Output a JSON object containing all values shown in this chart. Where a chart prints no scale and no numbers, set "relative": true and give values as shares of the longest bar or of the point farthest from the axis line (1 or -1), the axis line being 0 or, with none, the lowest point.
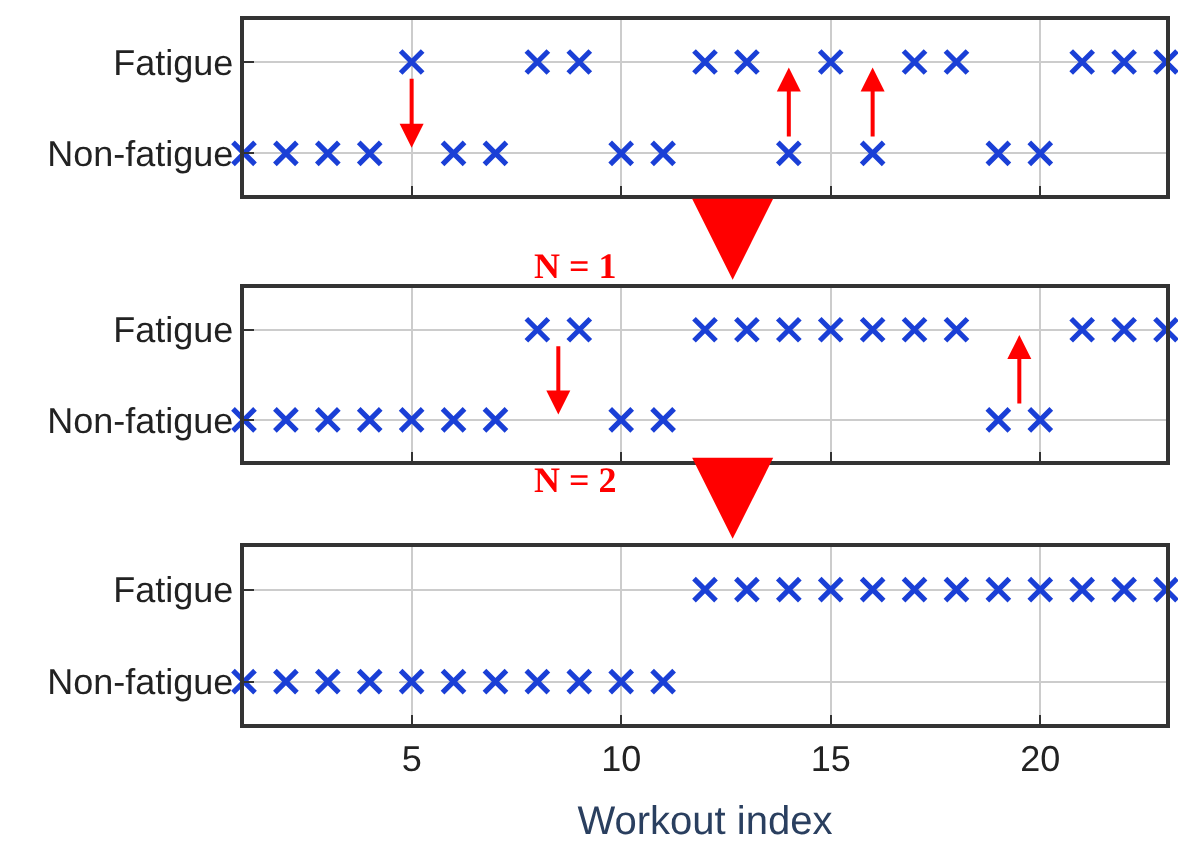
{
  "chart_data": [
    {
      "type": "scatter",
      "relative": true,
      "x": [
        1,
        2,
        3,
        4,
        5,
        6,
        7,
        8,
        9,
        10,
        11,
        12,
        13,
        14,
        15,
        16,
        17,
        18,
        19,
        20,
        21,
        22,
        23
      ],
      "y_categories": [
        "Fatigue",
        "Non-fatigue"
      ],
      "series": [
        {
          "color": "#1a3fd6",
          "values": [
            0,
            0,
            0,
            0,
            1,
            0,
            0,
            1,
            1,
            0,
            0,
            1,
            1,
            0,
            1,
            0,
            1,
            1,
            0,
            0,
            1,
            1,
            1
          ]
        }
      ],
      "xlim": [
        1,
        23
      ],
      "xticks": [
        5,
        10,
        15,
        20
      ],
      "tick_labels": "y",
      "grid": true,
      "marker": "cross"
    },
    {
      "type": "scatter",
      "relative": true,
      "x": [
        1,
        2,
        3,
        4,
        5,
        6,
        7,
        8,
        9,
        10,
        11,
        12,
        13,
        14,
        15,
        16,
        17,
        18,
        19,
        20,
        21,
        22,
        23
      ],
      "y_categories": [
        "Fatigue",
        "Non-fatigue"
      ],
      "series": [
        {
          "color": "#1a3fd6",
          "values": [
            0,
            0,
            0,
            0,
            0,
            0,
            0,
            1,
            1,
            0,
            0,
            1,
            1,
            1,
            1,
            1,
            1,
            1,
            0,
            0,
            1,
            1,
            1
          ]
        }
      ],
      "xlim": [
        1,
        23
      ],
      "xticks": [
        5,
        10,
        15,
        20
      ],
      "tick_labels": "y",
      "grid": true,
      "marker": "cross",
      "annotations": [
        "N = 1"
      ]
    },
    {
      "type": "scatter",
      "relative": true,
      "x": [
        1,
        2,
        3,
        4,
        5,
        6,
        7,
        8,
        9,
        10,
        11,
        12,
        13,
        14,
        15,
        16,
        17,
        18,
        19,
        20,
        21,
        22,
        23
      ],
      "y_categories": [
        "Fatigue",
        "Non-fatigue"
      ],
      "series": [
        {
          "color": "#1a3fd6",
          "values": [
            0,
            0,
            0,
            0,
            0,
            0,
            0,
            0,
            0,
            0,
            0,
            1,
            1,
            1,
            1,
            1,
            1,
            1,
            1,
            1,
            1,
            1,
            1
          ]
        }
      ],
      "xlim": [
        1,
        23
      ],
      "xticks": [
        5,
        10,
        15,
        20
      ],
      "xlabel": "Workout index",
      "grid": true,
      "marker": "cross",
      "annotations": [
        "N = 2"
      ]
    }
  ]
}
